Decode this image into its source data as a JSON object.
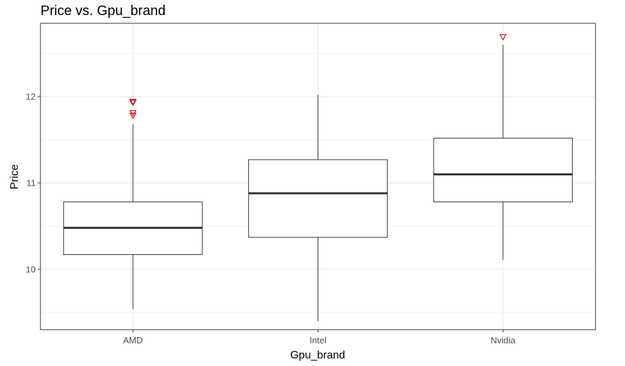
{
  "chart_data": {
    "type": "boxplot",
    "title": "Price vs. Gpu_brand",
    "xlabel": "Gpu_brand",
    "ylabel": "Price",
    "categories": [
      "AMD",
      "Intel",
      "Nvidia"
    ],
    "ylim": [
      9.3,
      12.85
    ],
    "yticks": [
      10,
      11,
      12
    ],
    "ytick_labels": [
      "10",
      "11",
      "12"
    ],
    "grid": true,
    "boxes": [
      {
        "category": "AMD",
        "whisker_low": 9.54,
        "q1": 10.17,
        "median": 10.48,
        "q3": 10.78,
        "whisker_high": 11.68,
        "outliers": [
          11.94,
          11.93,
          11.81,
          11.78
        ]
      },
      {
        "category": "Intel",
        "whisker_low": 9.4,
        "q1": 10.37,
        "median": 10.88,
        "q3": 11.27,
        "whisker_high": 12.02,
        "outliers": []
      },
      {
        "category": "Nvidia",
        "whisker_low": 10.11,
        "q1": 10.78,
        "median": 11.1,
        "q3": 11.52,
        "whisker_high": 12.6,
        "outliers": [
          12.69
        ]
      }
    ],
    "colors": {
      "box_line": "#333333",
      "outlier": "#cc0000",
      "grid": "#ebebeb",
      "panel_border": "#333333"
    }
  }
}
